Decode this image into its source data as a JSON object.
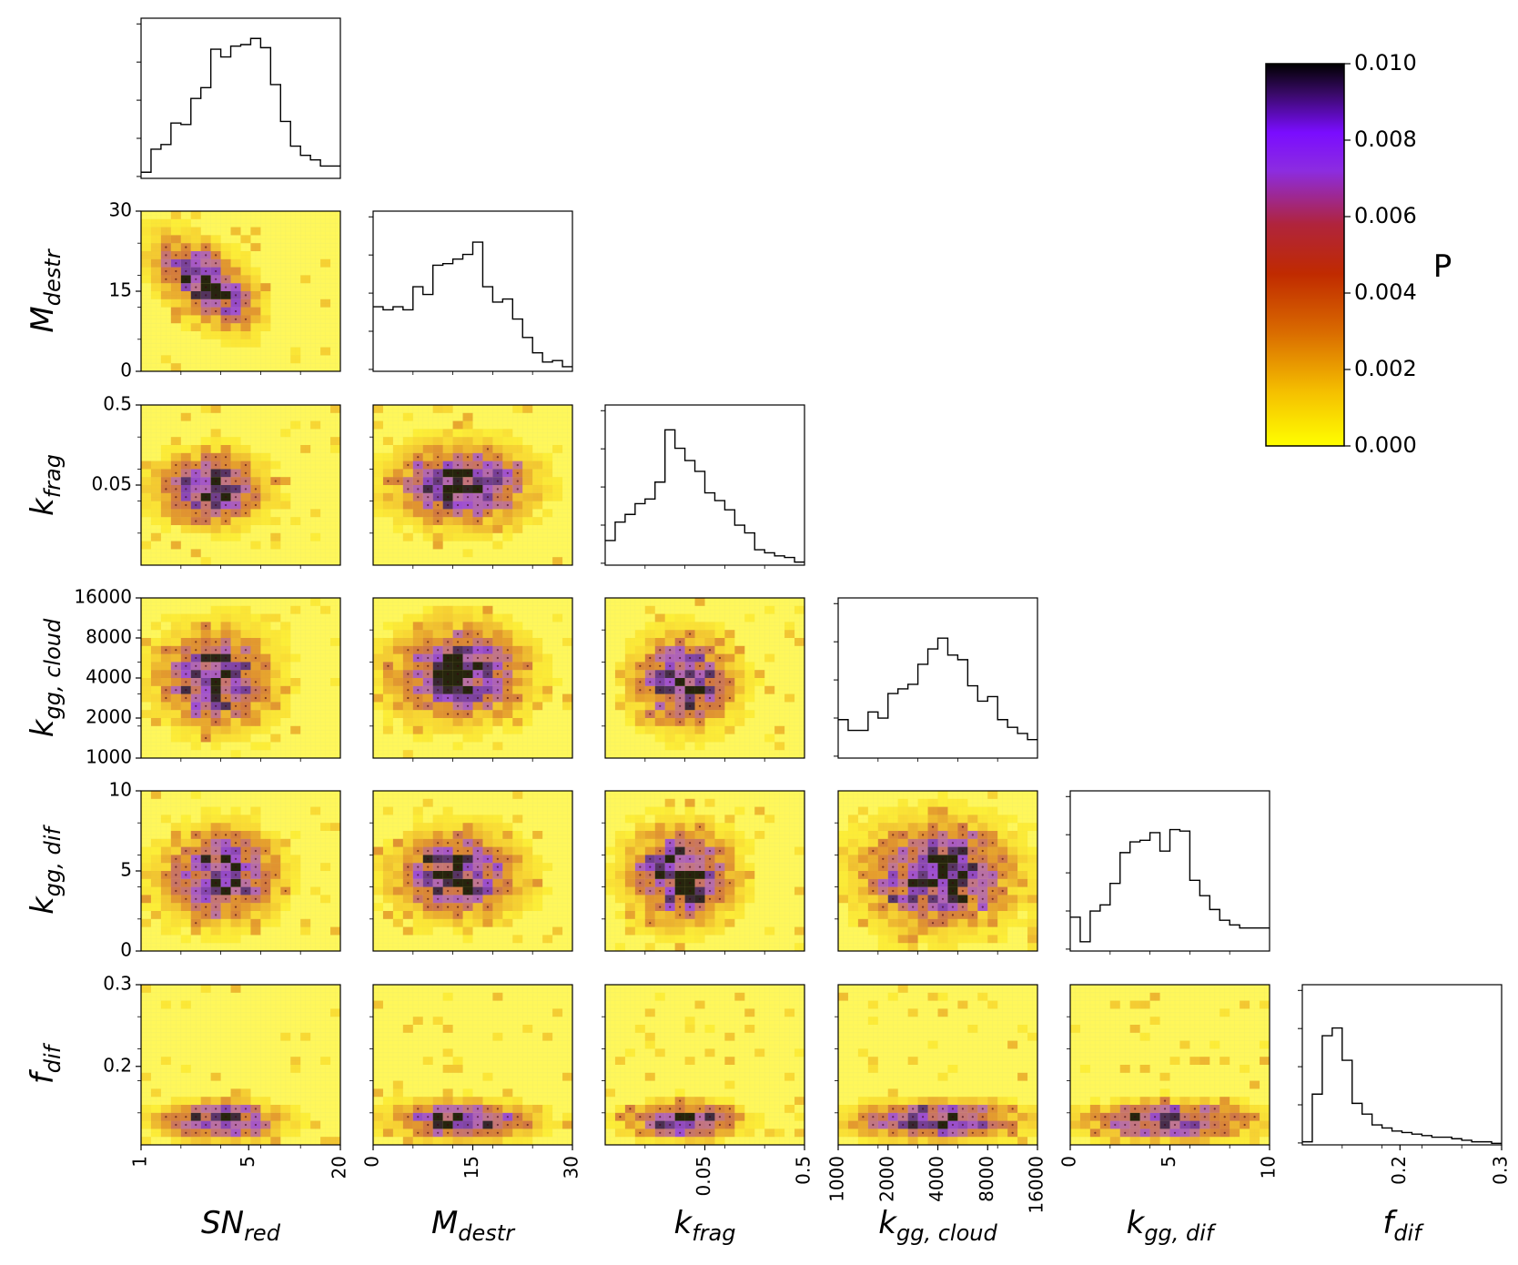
{
  "chart_data": {
    "type": "heatmap",
    "layout": "corner",
    "grid_size": 20,
    "parameters": [
      {
        "key": "sn_red",
        "label_main": "SN",
        "label_sub": "red",
        "scale": "linear-index",
        "ticks": [
          "1",
          "5",
          "20"
        ]
      },
      {
        "key": "m_destr",
        "label_main": "M",
        "label_sub": "destr",
        "scale": "linear-index",
        "ticks": [
          "0",
          "15",
          "30"
        ]
      },
      {
        "key": "k_frag",
        "label_main": "k",
        "label_sub": "frag",
        "scale": "linear-index",
        "ticks": [
          "0.05",
          "0.5"
        ]
      },
      {
        "key": "k_gg_cloud",
        "label_main": "k",
        "label_sub": "gg, cloud",
        "scale": "linear-index",
        "ticks": [
          "1000",
          "2000",
          "4000",
          "8000",
          "16000"
        ]
      },
      {
        "key": "k_gg_dif",
        "label_main": "k",
        "label_sub": "gg, dif",
        "scale": "linear-index",
        "ticks": [
          "0",
          "5",
          "10"
        ]
      },
      {
        "key": "f_dif",
        "label_main": "f",
        "label_sub": "dif",
        "scale": "linear-index",
        "ticks": [
          "0.2",
          "0.3"
        ]
      }
    ],
    "histograms": [
      [
        0.04,
        0.19,
        0.22,
        0.36,
        0.35,
        0.52,
        0.59,
        0.84,
        0.79,
        0.86,
        0.87,
        0.91,
        0.85,
        0.61,
        0.37,
        0.21,
        0.15,
        0.12,
        0.08,
        0.08
      ],
      [
        0.42,
        0.4,
        0.42,
        0.4,
        0.55,
        0.5,
        0.69,
        0.7,
        0.73,
        0.76,
        0.84,
        0.55,
        0.45,
        0.47,
        0.34,
        0.22,
        0.12,
        0.06,
        0.07,
        0.03
      ],
      [
        0.16,
        0.28,
        0.33,
        0.4,
        0.43,
        0.54,
        0.88,
        0.76,
        0.68,
        0.61,
        0.47,
        0.42,
        0.36,
        0.26,
        0.21,
        0.1,
        0.08,
        0.06,
        0.05,
        0.02
      ],
      [
        0.25,
        0.18,
        0.18,
        0.3,
        0.26,
        0.42,
        0.45,
        0.48,
        0.61,
        0.71,
        0.78,
        0.67,
        0.64,
        0.47,
        0.37,
        0.4,
        0.25,
        0.2,
        0.16,
        0.12
      ],
      [
        0.22,
        0.06,
        0.26,
        0.3,
        0.44,
        0.64,
        0.71,
        0.72,
        0.77,
        0.65,
        0.79,
        0.78,
        0.46,
        0.36,
        0.27,
        0.2,
        0.17,
        0.15,
        0.15,
        0.15
      ],
      [
        0.02,
        0.33,
        0.71,
        0.76,
        0.55,
        0.27,
        0.2,
        0.13,
        0.11,
        0.09,
        0.08,
        0.07,
        0.06,
        0.05,
        0.05,
        0.04,
        0.03,
        0.02,
        0.02,
        0.01
      ]
    ],
    "pair_peaks": {
      "1-0": {
        "cx": 6.5,
        "cy": 11,
        "sx": 3.0,
        "sy": 3.4,
        "rho": -0.55
      },
      "2-0": {
        "cx": 7,
        "cy": 9.5,
        "sx": 3.2,
        "sy": 2.6,
        "rho": 0
      },
      "2-1": {
        "cx": 9,
        "cy": 10,
        "sx": 4.2,
        "sy": 3.0,
        "rho": 0
      },
      "3-0": {
        "cx": 7.5,
        "cy": 10,
        "sx": 3.4,
        "sy": 3.6,
        "rho": 0
      },
      "3-1": {
        "cx": 8.5,
        "cy": 10.5,
        "sx": 4.0,
        "sy": 3.6,
        "rho": 0
      },
      "3-2": {
        "cx": 8,
        "cy": 9.5,
        "sx": 3.0,
        "sy": 3.4,
        "rho": 0
      },
      "4-0": {
        "cx": 8,
        "cy": 9.5,
        "sx": 3.4,
        "sy": 3.4,
        "rho": 0
      },
      "4-1": {
        "cx": 8.5,
        "cy": 9.5,
        "sx": 3.8,
        "sy": 3.2,
        "rho": 0
      },
      "4-2": {
        "cx": 7.5,
        "cy": 9.5,
        "sx": 3.2,
        "sy": 3.6,
        "rho": 0
      },
      "4-3": {
        "cx": 10,
        "cy": 9.5,
        "sx": 4.6,
        "sy": 4.0,
        "rho": 0
      },
      "5-0": {
        "cx": 8,
        "cy": 3,
        "sx": 3.6,
        "sy": 1.4,
        "rho": 0
      },
      "5-1": {
        "cx": 9,
        "cy": 3,
        "sx": 4.4,
        "sy": 1.4,
        "rho": 0
      },
      "5-2": {
        "cx": 8,
        "cy": 3,
        "sx": 3.2,
        "sy": 1.4,
        "rho": 0
      },
      "5-3": {
        "cx": 10,
        "cy": 3,
        "sx": 5.0,
        "sy": 1.4,
        "rho": 0
      },
      "5-4": {
        "cx": 10,
        "cy": 3,
        "sx": 5.0,
        "sy": 1.4,
        "rho": 0
      }
    },
    "colorbar": {
      "label": "P",
      "min": 0.0,
      "max": 0.01,
      "ticks": [
        "0.000",
        "0.002",
        "0.004",
        "0.006",
        "0.008",
        "0.010"
      ],
      "colors": [
        "#ffff00",
        "#f2b400",
        "#cc4400",
        "#b01a2a",
        "#9a2fc0",
        "#7a10ff",
        "#3a0a7a",
        "#000000"
      ]
    }
  }
}
